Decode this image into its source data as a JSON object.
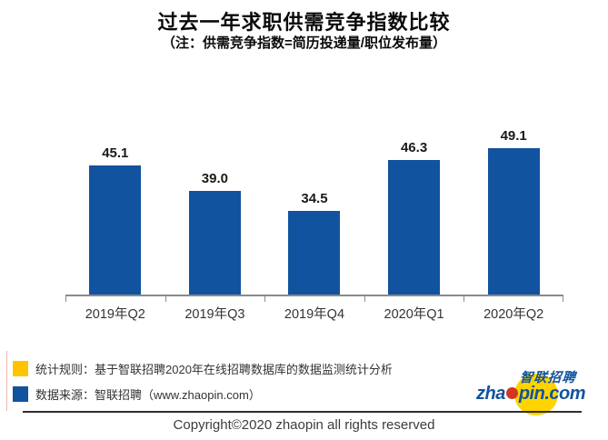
{
  "title": "过去一年求职供需竞争指数比较",
  "subtitle": "（注：供需竞争指数=简历投递量/职位发布量）",
  "chart_data": {
    "type": "bar",
    "categories": [
      "2019年Q2",
      "2019年Q3",
      "2019年Q4",
      "2020年Q1",
      "2020年Q2"
    ],
    "values": [
      45.1,
      39.0,
      34.5,
      46.3,
      49.1
    ],
    "data_labels": [
      "45.1",
      "39.0",
      "34.5",
      "46.3",
      "49.1"
    ],
    "title": "过去一年求职供需竞争指数比较",
    "subtitle": "（注：供需竞争指数=简历投递量/职位发布量）",
    "xlabel": "",
    "ylabel": "",
    "ylim": [
      15,
      52
    ],
    "grid": false,
    "legend_position": "none",
    "bar_color": "#11539e",
    "axis_color": "#8a8a8a"
  },
  "legend": {
    "items": [
      {
        "color": "#ffc400",
        "label": "统计规则：基于智联招聘2020年在线招聘数据库的数据监测统计分析"
      },
      {
        "color": "#11539e",
        "label": "数据来源：智联招聘（www.zhaopin.com）"
      }
    ]
  },
  "logo": {
    "cn_text": "智联招聘",
    "domain_prefix": "zha",
    "domain_suffix": "pin.com",
    "brand_blue": "#11539e",
    "circle_yellow": "#ffd400",
    "dot_red": "#cf3721"
  },
  "footer": {
    "copyright": "Copyright©2020 zhaopin all rights reserved"
  }
}
